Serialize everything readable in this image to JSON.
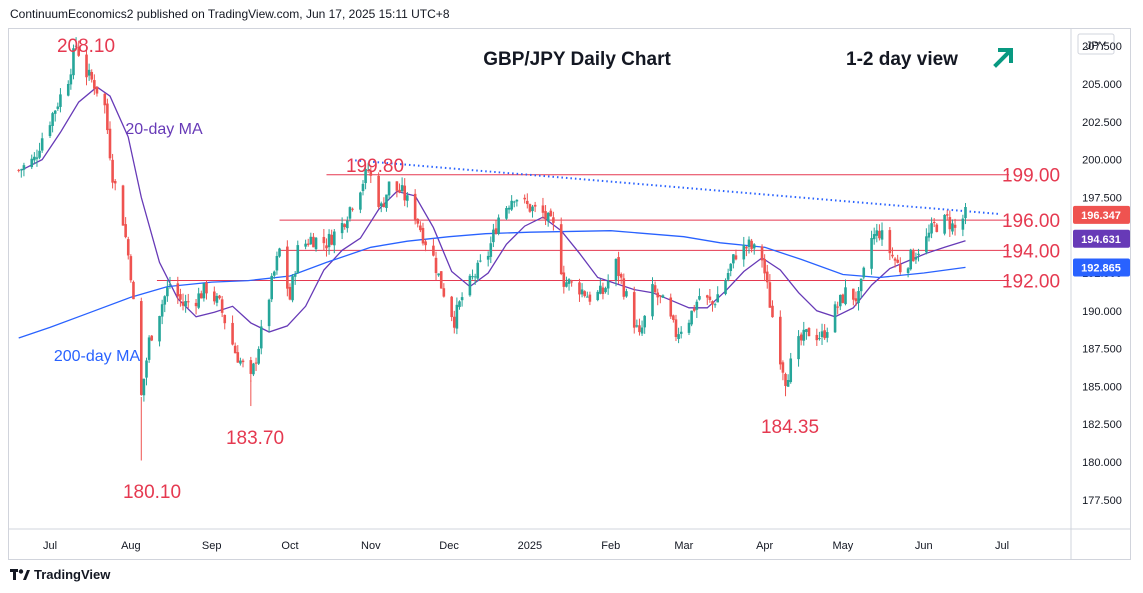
{
  "header": {
    "text": "ContinuumEconomics2 published on TradingView.com, Jun 17, 2025 15:11 UTC+8"
  },
  "footer": {
    "brand": "TradingView",
    "logo_icon": "tradingview-logo-icon"
  },
  "colors": {
    "up": "#26a69a",
    "down": "#ef5350",
    "level": "#e53950",
    "ma20": "#673ab7",
    "ma200": "#2962ff",
    "trend": "#2962ff",
    "accent_arrow": "#089981",
    "text": "#131722"
  },
  "chart_data": {
    "type": "candlestick",
    "title": "GBP/JPY Daily Chart",
    "view": "1-2 day view",
    "view_icon": "arrow-up-right-icon",
    "currency_label": "JPY",
    "ylim": [
      176.5,
      210.0
    ],
    "y_ticks": [
      177.5,
      180.0,
      182.5,
      185.0,
      187.5,
      190.0,
      192.5,
      195.0,
      197.5,
      200.0,
      202.5,
      205.0,
      207.5
    ],
    "y_tick_labels": [
      "177.500",
      "180.000",
      "182.500",
      "185.000",
      "187.500",
      "190.000",
      "192.500",
      "195.000",
      "197.500",
      "200.000",
      "202.500",
      "205.000",
      "207.500"
    ],
    "x_tick_labels": [
      {
        "label": "Jul",
        "date": "2024-07-01"
      },
      {
        "label": "Aug",
        "date": "2024-08-01"
      },
      {
        "label": "Sep",
        "date": "2024-09-01"
      },
      {
        "label": "Oct",
        "date": "2024-10-01"
      },
      {
        "label": "Nov",
        "date": "2024-11-01"
      },
      {
        "label": "Dec",
        "date": "2024-12-01"
      },
      {
        "label": "2025",
        "date": "2025-01-01"
      },
      {
        "label": "Feb",
        "date": "2025-02-01"
      },
      {
        "label": "Mar",
        "date": "2025-03-01"
      },
      {
        "label": "Apr",
        "date": "2025-04-01"
      },
      {
        "label": "May",
        "date": "2025-05-01"
      },
      {
        "label": "Jun",
        "date": "2025-06-01"
      },
      {
        "label": "Jul",
        "date": "2025-07-01"
      }
    ],
    "x_range": [
      "2024-06-19",
      "2025-07-24"
    ],
    "price_badges": [
      {
        "value": 196.347,
        "label": "196.347",
        "color": "#ef5350"
      },
      {
        "value": 194.631,
        "label": "194.631",
        "color": "#673ab7"
      },
      {
        "value": 192.865,
        "label": "192.865",
        "color": "#2962ff"
      }
    ],
    "levels": [
      {
        "value": 199.0,
        "label": "199.00",
        "from": "2024-10-15"
      },
      {
        "value": 196.0,
        "label": "196.00",
        "from": "2024-09-27"
      },
      {
        "value": 194.0,
        "label": "194.00",
        "from": "2024-09-27"
      },
      {
        "value": 192.0,
        "label": "192.00",
        "from": "2024-08-11"
      }
    ],
    "annotations": [
      {
        "text": "208.10",
        "date": "2024-07-11",
        "value": 208.1
      },
      {
        "text": "199.80",
        "date": "2024-10-31",
        "value": 199.8
      },
      {
        "text": "183.70",
        "date": "2024-09-16",
        "value": 183.7
      },
      {
        "text": "180.10",
        "date": "2024-08-05",
        "value": 180.1
      },
      {
        "text": "184.35",
        "date": "2025-04-09",
        "value": 184.35
      }
    ],
    "trendline": {
      "start": {
        "date": "2024-10-26",
        "value": 199.95
      },
      "end": {
        "date": "2025-06-30",
        "value": 196.4
      }
    },
    "series": [
      {
        "name": "20-day MA",
        "values": [
          {
            "date": "2024-06-20",
            "value": 199.3
          },
          {
            "date": "2024-06-28",
            "value": 200.0
          },
          {
            "date": "2024-07-05",
            "value": 201.8
          },
          {
            "date": "2024-07-12",
            "value": 203.8
          },
          {
            "date": "2024-07-19",
            "value": 204.8
          },
          {
            "date": "2024-07-24",
            "value": 204.2
          },
          {
            "date": "2024-07-31",
            "value": 201.5
          },
          {
            "date": "2024-08-05",
            "value": 197.5
          },
          {
            "date": "2024-08-12",
            "value": 193.2
          },
          {
            "date": "2024-08-19",
            "value": 190.8
          },
          {
            "date": "2024-08-26",
            "value": 189.6
          },
          {
            "date": "2024-09-02",
            "value": 189.9
          },
          {
            "date": "2024-09-09",
            "value": 190.3
          },
          {
            "date": "2024-09-16",
            "value": 189.2
          },
          {
            "date": "2024-09-23",
            "value": 188.6
          },
          {
            "date": "2024-09-30",
            "value": 189.0
          },
          {
            "date": "2024-10-07",
            "value": 190.3
          },
          {
            "date": "2024-10-14",
            "value": 192.7
          },
          {
            "date": "2024-10-21",
            "value": 194.0
          },
          {
            "date": "2024-10-28",
            "value": 194.8
          },
          {
            "date": "2024-11-04",
            "value": 196.7
          },
          {
            "date": "2024-11-11",
            "value": 197.9
          },
          {
            "date": "2024-11-18",
            "value": 197.6
          },
          {
            "date": "2024-11-25",
            "value": 195.5
          },
          {
            "date": "2024-12-02",
            "value": 192.6
          },
          {
            "date": "2024-12-09",
            "value": 191.6
          },
          {
            "date": "2024-12-16",
            "value": 192.5
          },
          {
            "date": "2024-12-23",
            "value": 194.4
          },
          {
            "date": "2024-12-30",
            "value": 195.6
          },
          {
            "date": "2025-01-06",
            "value": 196.2
          },
          {
            "date": "2025-01-13",
            "value": 195.3
          },
          {
            "date": "2025-01-20",
            "value": 193.8
          },
          {
            "date": "2025-01-27",
            "value": 192.2
          },
          {
            "date": "2025-02-03",
            "value": 191.8
          },
          {
            "date": "2025-02-10",
            "value": 191.4
          },
          {
            "date": "2025-02-17",
            "value": 191.2
          },
          {
            "date": "2025-02-24",
            "value": 190.7
          },
          {
            "date": "2025-03-03",
            "value": 190.2
          },
          {
            "date": "2025-03-10",
            "value": 190.2
          },
          {
            "date": "2025-03-17",
            "value": 191.3
          },
          {
            "date": "2025-03-24",
            "value": 192.6
          },
          {
            "date": "2025-03-31",
            "value": 193.5
          },
          {
            "date": "2025-04-07",
            "value": 192.7
          },
          {
            "date": "2025-04-14",
            "value": 191.2
          },
          {
            "date": "2025-04-21",
            "value": 190.0
          },
          {
            "date": "2025-04-28",
            "value": 189.6
          },
          {
            "date": "2025-05-05",
            "value": 190.2
          },
          {
            "date": "2025-05-12",
            "value": 191.7
          },
          {
            "date": "2025-05-19",
            "value": 192.8
          },
          {
            "date": "2025-05-26",
            "value": 193.3
          },
          {
            "date": "2025-06-02",
            "value": 193.8
          },
          {
            "date": "2025-06-09",
            "value": 194.2
          },
          {
            "date": "2025-06-17",
            "value": 194.63
          }
        ]
      },
      {
        "name": "200-day MA",
        "values": [
          {
            "date": "2024-06-19",
            "value": 188.2
          },
          {
            "date": "2024-07-01",
            "value": 188.9
          },
          {
            "date": "2024-07-15",
            "value": 189.8
          },
          {
            "date": "2024-08-01",
            "value": 190.9
          },
          {
            "date": "2024-08-15",
            "value": 191.6
          },
          {
            "date": "2024-09-01",
            "value": 191.9
          },
          {
            "date": "2024-09-15",
            "value": 192.0
          },
          {
            "date": "2024-10-01",
            "value": 192.3
          },
          {
            "date": "2024-10-15",
            "value": 193.2
          },
          {
            "date": "2024-11-01",
            "value": 194.2
          },
          {
            "date": "2024-11-15",
            "value": 194.6
          },
          {
            "date": "2024-12-01",
            "value": 194.9
          },
          {
            "date": "2024-12-15",
            "value": 195.1
          },
          {
            "date": "2025-01-01",
            "value": 195.2
          },
          {
            "date": "2025-02-01",
            "value": 195.3
          },
          {
            "date": "2025-02-15",
            "value": 195.1
          },
          {
            "date": "2025-03-01",
            "value": 194.9
          },
          {
            "date": "2025-03-15",
            "value": 194.5
          },
          {
            "date": "2025-04-01",
            "value": 194.2
          },
          {
            "date": "2025-04-15",
            "value": 193.4
          },
          {
            "date": "2025-05-01",
            "value": 192.4
          },
          {
            "date": "2025-05-15",
            "value": 192.2
          },
          {
            "date": "2025-06-01",
            "value": 192.5
          },
          {
            "date": "2025-06-17",
            "value": 192.87
          }
        ]
      }
    ],
    "ma_labels": [
      {
        "text": "20-day MA",
        "series": "20-day MA"
      },
      {
        "text": "200-day MA",
        "series": "200-day MA"
      }
    ],
    "price_path": [
      {
        "date": "2024-06-19",
        "value": 199.3
      },
      {
        "date": "2024-06-25",
        "value": 200.0
      },
      {
        "date": "2024-06-28",
        "value": 201.5
      },
      {
        "date": "2024-07-03",
        "value": 203.4
      },
      {
        "date": "2024-07-08",
        "value": 205.4
      },
      {
        "date": "2024-07-11",
        "value": 207.6
      },
      {
        "date": "2024-07-15",
        "value": 205.7
      },
      {
        "date": "2024-07-18",
        "value": 205.0
      },
      {
        "date": "2024-07-22",
        "value": 203.5
      },
      {
        "date": "2024-07-25",
        "value": 199.0
      },
      {
        "date": "2024-07-29",
        "value": 196.0
      },
      {
        "date": "2024-08-01",
        "value": 192.5
      },
      {
        "date": "2024-08-05",
        "value": 184.3
      },
      {
        "date": "2024-08-08",
        "value": 188.0
      },
      {
        "date": "2024-08-13",
        "value": 190.5
      },
      {
        "date": "2024-08-16",
        "value": 191.8
      },
      {
        "date": "2024-08-21",
        "value": 190.4
      },
      {
        "date": "2024-08-26",
        "value": 190.8
      },
      {
        "date": "2024-08-30",
        "value": 191.5
      },
      {
        "date": "2024-09-04",
        "value": 190.4
      },
      {
        "date": "2024-09-10",
        "value": 187.3
      },
      {
        "date": "2024-09-16",
        "value": 185.4
      },
      {
        "date": "2024-09-20",
        "value": 188.5
      },
      {
        "date": "2024-09-24",
        "value": 191.8
      },
      {
        "date": "2024-09-27",
        "value": 194.0
      },
      {
        "date": "2024-10-01",
        "value": 190.8
      },
      {
        "date": "2024-10-04",
        "value": 194.0
      },
      {
        "date": "2024-10-09",
        "value": 194.8
      },
      {
        "date": "2024-10-15",
        "value": 194.5
      },
      {
        "date": "2024-10-21",
        "value": 195.7
      },
      {
        "date": "2024-10-25",
        "value": 197.2
      },
      {
        "date": "2024-10-31",
        "value": 199.3
      },
      {
        "date": "2024-11-05",
        "value": 196.8
      },
      {
        "date": "2024-11-08",
        "value": 198.3
      },
      {
        "date": "2024-11-13",
        "value": 197.8
      },
      {
        "date": "2024-11-18",
        "value": 196.4
      },
      {
        "date": "2024-11-21",
        "value": 195.0
      },
      {
        "date": "2024-11-25",
        "value": 193.5
      },
      {
        "date": "2024-11-28",
        "value": 191.7
      },
      {
        "date": "2024-12-03",
        "value": 189.4
      },
      {
        "date": "2024-12-06",
        "value": 190.9
      },
      {
        "date": "2024-12-11",
        "value": 192.4
      },
      {
        "date": "2024-12-16",
        "value": 193.8
      },
      {
        "date": "2024-12-20",
        "value": 196.2
      },
      {
        "date": "2024-12-26",
        "value": 197.7
      },
      {
        "date": "2024-12-30",
        "value": 197.0
      },
      {
        "date": "2025-01-06",
        "value": 196.4
      },
      {
        "date": "2025-01-10",
        "value": 195.5
      },
      {
        "date": "2025-01-14",
        "value": 192.0
      },
      {
        "date": "2025-01-20",
        "value": 191.5
      },
      {
        "date": "2025-01-24",
        "value": 190.9
      },
      {
        "date": "2025-01-29",
        "value": 191.2
      },
      {
        "date": "2025-02-03",
        "value": 193.1
      },
      {
        "date": "2025-02-07",
        "value": 190.9
      },
      {
        "date": "2025-02-12",
        "value": 188.2
      },
      {
        "date": "2025-02-17",
        "value": 191.3
      },
      {
        "date": "2025-02-21",
        "value": 190.5
      },
      {
        "date": "2025-02-26",
        "value": 188.5
      },
      {
        "date": "2025-03-03",
        "value": 189.5
      },
      {
        "date": "2025-03-07",
        "value": 191.0
      },
      {
        "date": "2025-03-12",
        "value": 190.4
      },
      {
        "date": "2025-03-17",
        "value": 192.1
      },
      {
        "date": "2025-03-21",
        "value": 193.8
      },
      {
        "date": "2025-03-26",
        "value": 194.3
      },
      {
        "date": "2025-03-31",
        "value": 193.5
      },
      {
        "date": "2025-04-03",
        "value": 190.5
      },
      {
        "date": "2025-04-07",
        "value": 187.0
      },
      {
        "date": "2025-04-09",
        "value": 185.5
      },
      {
        "date": "2025-04-14",
        "value": 187.8
      },
      {
        "date": "2025-04-18",
        "value": 188.6
      },
      {
        "date": "2025-04-23",
        "value": 188.3
      },
      {
        "date": "2025-04-28",
        "value": 190.0
      },
      {
        "date": "2025-05-02",
        "value": 191.2
      },
      {
        "date": "2025-05-07",
        "value": 190.8
      },
      {
        "date": "2025-05-12",
        "value": 194.8
      },
      {
        "date": "2025-05-15",
        "value": 195.2
      },
      {
        "date": "2025-05-20",
        "value": 193.6
      },
      {
        "date": "2025-05-23",
        "value": 192.8
      },
      {
        "date": "2025-05-28",
        "value": 193.7
      },
      {
        "date": "2025-06-02",
        "value": 194.7
      },
      {
        "date": "2025-06-05",
        "value": 195.6
      },
      {
        "date": "2025-06-10",
        "value": 196.0
      },
      {
        "date": "2025-06-13",
        "value": 195.4
      },
      {
        "date": "2025-06-17",
        "value": 196.35
      }
    ]
  }
}
